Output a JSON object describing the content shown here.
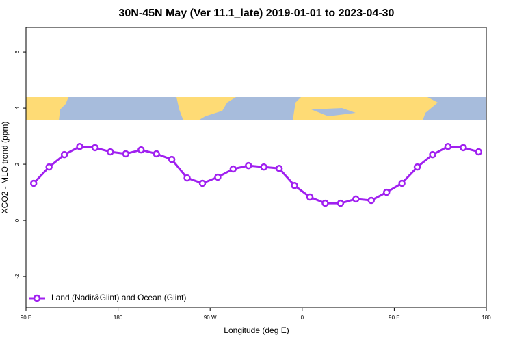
{
  "chart_data": {
    "type": "line",
    "title": "30N-45N May (Ver 11.1_late)   2019-01-01 to 2023-04-30",
    "x_label": "Longitude (deg E)",
    "y_label": "XCO2 - MLO trend (ppm)",
    "x": [
      97.5,
      112.5,
      127.5,
      142.5,
      157.5,
      172.5,
      187.5,
      202.5,
      217.5,
      232.5,
      247.5,
      262.5,
      277.5,
      292.5,
      307.5,
      322.5,
      337.5,
      352.5,
      367.5,
      382.5,
      397.5,
      412.5,
      427.5,
      442.5,
      457.5,
      472.5,
      487.5,
      502.5,
      517.5,
      532.5
    ],
    "series": [
      {
        "name": "Land (Nadir&Glint) and Ocean (Glint)",
        "color": "#a020f0",
        "values": [
          1.32,
          1.9,
          2.34,
          2.63,
          2.59,
          2.44,
          2.37,
          2.51,
          2.37,
          2.17,
          1.51,
          1.32,
          1.54,
          1.83,
          1.95,
          1.9,
          1.85,
          1.24,
          0.83,
          0.61,
          0.61,
          0.76,
          0.71,
          1.0,
          1.32,
          1.9,
          2.34,
          2.63,
          2.59,
          2.44
        ]
      }
    ],
    "xlim": [
      90,
      540
    ],
    "xticks": [
      {
        "value": 90,
        "label": "90 E"
      },
      180,
      {
        "value": 270,
        "label": "90 W"
      },
      {
        "value": 360,
        "label": "0"
      },
      {
        "value": 450,
        "label": "90 E"
      },
      {
        "value": 540,
        "label": "180"
      }
    ],
    "ylim": [
      -3.12,
      6.88
    ],
    "yticks": [
      -2,
      0,
      2,
      4,
      6
    ],
    "legend": "bottom-left"
  }
}
